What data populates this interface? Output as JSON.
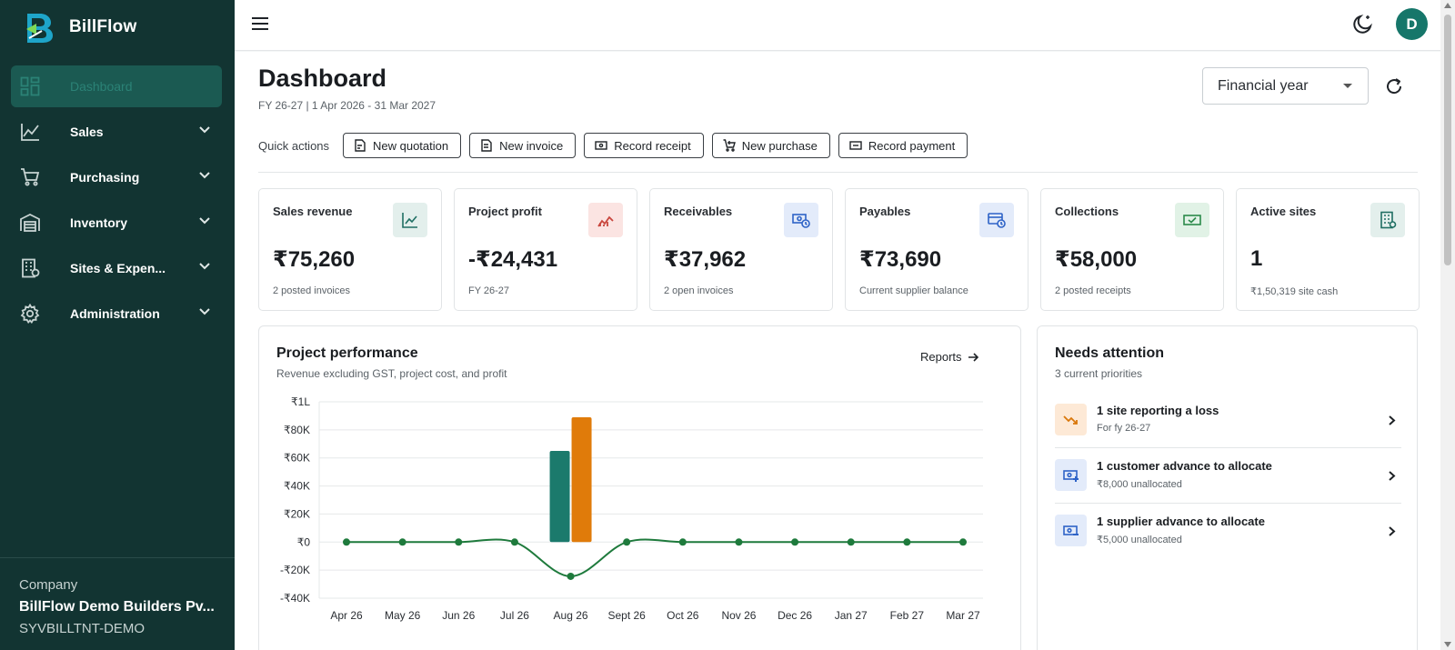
{
  "app": {
    "name": "BillFlow",
    "logo_letter": "B"
  },
  "sidebar": {
    "items": [
      {
        "label": "Dashboard",
        "icon": "dashboard-grid-icon",
        "active": true
      },
      {
        "label": "Sales",
        "icon": "line-chart-icon"
      },
      {
        "label": "Purchasing",
        "icon": "cart-icon"
      },
      {
        "label": "Inventory",
        "icon": "warehouse-icon"
      },
      {
        "label": "Sites & Expen...",
        "icon": "building-icon"
      },
      {
        "label": "Administration",
        "icon": "gear-icon"
      }
    ],
    "company": {
      "label": "Company",
      "name": "BillFlow Demo Builders Pv...",
      "code": "SYVBILLTNT-DEMO"
    }
  },
  "topbar": {
    "avatar_initial": "D"
  },
  "header": {
    "title": "Dashboard",
    "subtitle": "FY 26-27 | 1 Apr 2026 - 31 Mar 2027",
    "period_select": "Financial year"
  },
  "quick_actions": {
    "label": "Quick actions",
    "buttons": [
      {
        "label": "New quotation",
        "icon": "quotation-icon"
      },
      {
        "label": "New invoice",
        "icon": "invoice-icon"
      },
      {
        "label": "Record receipt",
        "icon": "receipt-cash-icon"
      },
      {
        "label": "New purchase",
        "icon": "cart-plus-icon"
      },
      {
        "label": "Record payment",
        "icon": "payment-cash-icon"
      }
    ]
  },
  "kpis": [
    {
      "label": "Sales revenue",
      "value": "₹75,260",
      "note": "2 posted invoices",
      "icon": "trend-up-icon",
      "bg": "#e3efec",
      "fg": "#1f6f63"
    },
    {
      "label": "Project profit",
      "value": "-₹24,431",
      "note": "FY 26-27",
      "icon": "trend-down-icon",
      "bg": "#fbe4e2",
      "fg": "#c9463d"
    },
    {
      "label": "Receivables",
      "value": "₹37,962",
      "note": "2 open invoices",
      "icon": "cash-clock-icon",
      "bg": "#e3ebfa",
      "fg": "#2e63c7"
    },
    {
      "label": "Payables",
      "value": "₹73,690",
      "note": "Current supplier balance",
      "icon": "card-clock-icon",
      "bg": "#e3ebfa",
      "fg": "#2e63c7"
    },
    {
      "label": "Collections",
      "value": "₹58,000",
      "note": "2 posted receipts",
      "icon": "cash-check-icon",
      "bg": "#e1f2e6",
      "fg": "#2b8a4a"
    },
    {
      "label": "Active sites",
      "value": "1",
      "note": "₹1,50,319 site cash",
      "icon": "building-icon",
      "bg": "#e3efec",
      "fg": "#1f6f63"
    }
  ],
  "performance": {
    "title": "Project performance",
    "subtitle": "Revenue excluding GST, project cost, and profit",
    "reports_link": "Reports"
  },
  "chart_data": {
    "type": "bar",
    "categories": [
      "Apr 26",
      "May 26",
      "Jun 26",
      "Jul 26",
      "Aug 26",
      "Sept 26",
      "Oct 26",
      "Nov 26",
      "Dec 26",
      "Jan 27",
      "Feb 27",
      "Mar 27"
    ],
    "y_ticks": [
      "₹1L",
      "₹80K",
      "₹60K",
      "₹40K",
      "₹20K",
      "₹0",
      "-₹20K",
      "-₹40K"
    ],
    "ylim": [
      -40000,
      100000
    ],
    "grid": true,
    "series": [
      {
        "kind": "bar",
        "color": "#1b7a6c",
        "values": [
          0,
          0,
          0,
          0,
          65000,
          0,
          0,
          0,
          0,
          0,
          0,
          0
        ]
      },
      {
        "kind": "bar",
        "color": "#e07b0a",
        "values": [
          0,
          0,
          0,
          0,
          89000,
          0,
          0,
          0,
          0,
          0,
          0,
          0
        ]
      },
      {
        "kind": "line",
        "color": "#1e7a3c",
        "values": [
          0,
          0,
          0,
          0,
          -24431,
          0,
          0,
          0,
          0,
          0,
          0,
          0
        ]
      }
    ]
  },
  "attention": {
    "title": "Needs attention",
    "subtitle": "3 current priorities",
    "items": [
      {
        "text": "1 site reporting a loss",
        "note": "For fy 26-27",
        "icon": "trend-down-icon",
        "bg": "#fde9d6",
        "fg": "#d9770a"
      },
      {
        "text": "1 customer advance to allocate",
        "note": "₹8,000 unallocated",
        "icon": "cash-plus-icon",
        "bg": "#e3ebfa",
        "fg": "#2e63c7"
      },
      {
        "text": "1 supplier advance to allocate",
        "note": "₹5,000 unallocated",
        "icon": "cash-minus-icon",
        "bg": "#e3ebfa",
        "fg": "#2e63c7"
      }
    ]
  }
}
